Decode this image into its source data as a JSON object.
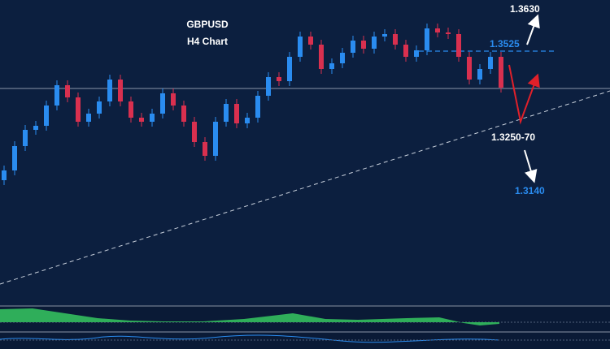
{
  "chart_data": {
    "type": "candlestick",
    "title": "GBPUSD",
    "subtitle": "H4 Chart",
    "annotations": [
      "1.3630",
      "1.3525",
      "1.3250-70",
      "1.3140"
    ],
    "up_color": "#2a8cf0",
    "down_color": "#d9304f",
    "ylim": [
      1.29,
      1.365
    ],
    "open": [
      1.3206,
      1.323,
      1.329,
      1.333,
      1.334,
      1.339,
      1.344,
      1.341,
      1.335,
      1.337,
      1.34,
      1.3454,
      1.34,
      1.336,
      1.335,
      1.337,
      1.342,
      1.339,
      1.335,
      1.33,
      1.3266,
      1.335,
      1.3394,
      1.3346,
      1.336,
      1.3414,
      1.346,
      1.345,
      1.351,
      1.356,
      1.354,
      1.348,
      1.3494,
      1.352,
      1.355,
      1.353,
      1.356,
      1.3566,
      1.354,
      1.351,
      1.3526,
      1.358,
      1.357,
      1.3566,
      1.351,
      1.3454,
      1.348,
      1.351
    ],
    "high": [
      1.3242,
      1.3302,
      1.3342,
      1.3352,
      1.3402,
      1.3452,
      1.3452,
      1.3422,
      1.3382,
      1.3412,
      1.3466,
      1.3466,
      1.3412,
      1.3372,
      1.3382,
      1.3432,
      1.3432,
      1.3402,
      1.3362,
      1.3312,
      1.3362,
      1.3406,
      1.3406,
      1.3372,
      1.3426,
      1.3472,
      1.3472,
      1.3522,
      1.3572,
      1.3572,
      1.3552,
      1.3506,
      1.3532,
      1.3562,
      1.3562,
      1.3572,
      1.3578,
      1.3578,
      1.3552,
      1.3538,
      1.3592,
      1.3592,
      1.3582,
      1.3578,
      1.3522,
      1.3492,
      1.3522,
      1.3522
    ],
    "low": [
      1.3194,
      1.3218,
      1.3278,
      1.3318,
      1.3328,
      1.3378,
      1.3398,
      1.3338,
      1.3338,
      1.3358,
      1.3388,
      1.3388,
      1.3348,
      1.3338,
      1.3338,
      1.3358,
      1.3378,
      1.3338,
      1.3288,
      1.3254,
      1.3254,
      1.3338,
      1.3334,
      1.3334,
      1.3348,
      1.3402,
      1.3438,
      1.3438,
      1.3498,
      1.3528,
      1.3468,
      1.3468,
      1.3482,
      1.3508,
      1.3518,
      1.3518,
      1.3548,
      1.3528,
      1.3498,
      1.3498,
      1.3514,
      1.3558,
      1.3554,
      1.3498,
      1.3442,
      1.3442,
      1.3468,
      1.3422
    ],
    "close": [
      1.323,
      1.329,
      1.333,
      1.334,
      1.339,
      1.344,
      1.341,
      1.335,
      1.337,
      1.34,
      1.3454,
      1.34,
      1.336,
      1.335,
      1.337,
      1.342,
      1.339,
      1.335,
      1.33,
      1.3266,
      1.335,
      1.3394,
      1.3346,
      1.336,
      1.3414,
      1.346,
      1.345,
      1.351,
      1.356,
      1.354,
      1.348,
      1.3494,
      1.352,
      1.355,
      1.353,
      1.356,
      1.3566,
      1.354,
      1.351,
      1.3526,
      1.358,
      1.357,
      1.3566,
      1.351,
      1.3454,
      1.348,
      1.351,
      1.3434
    ]
  }
}
